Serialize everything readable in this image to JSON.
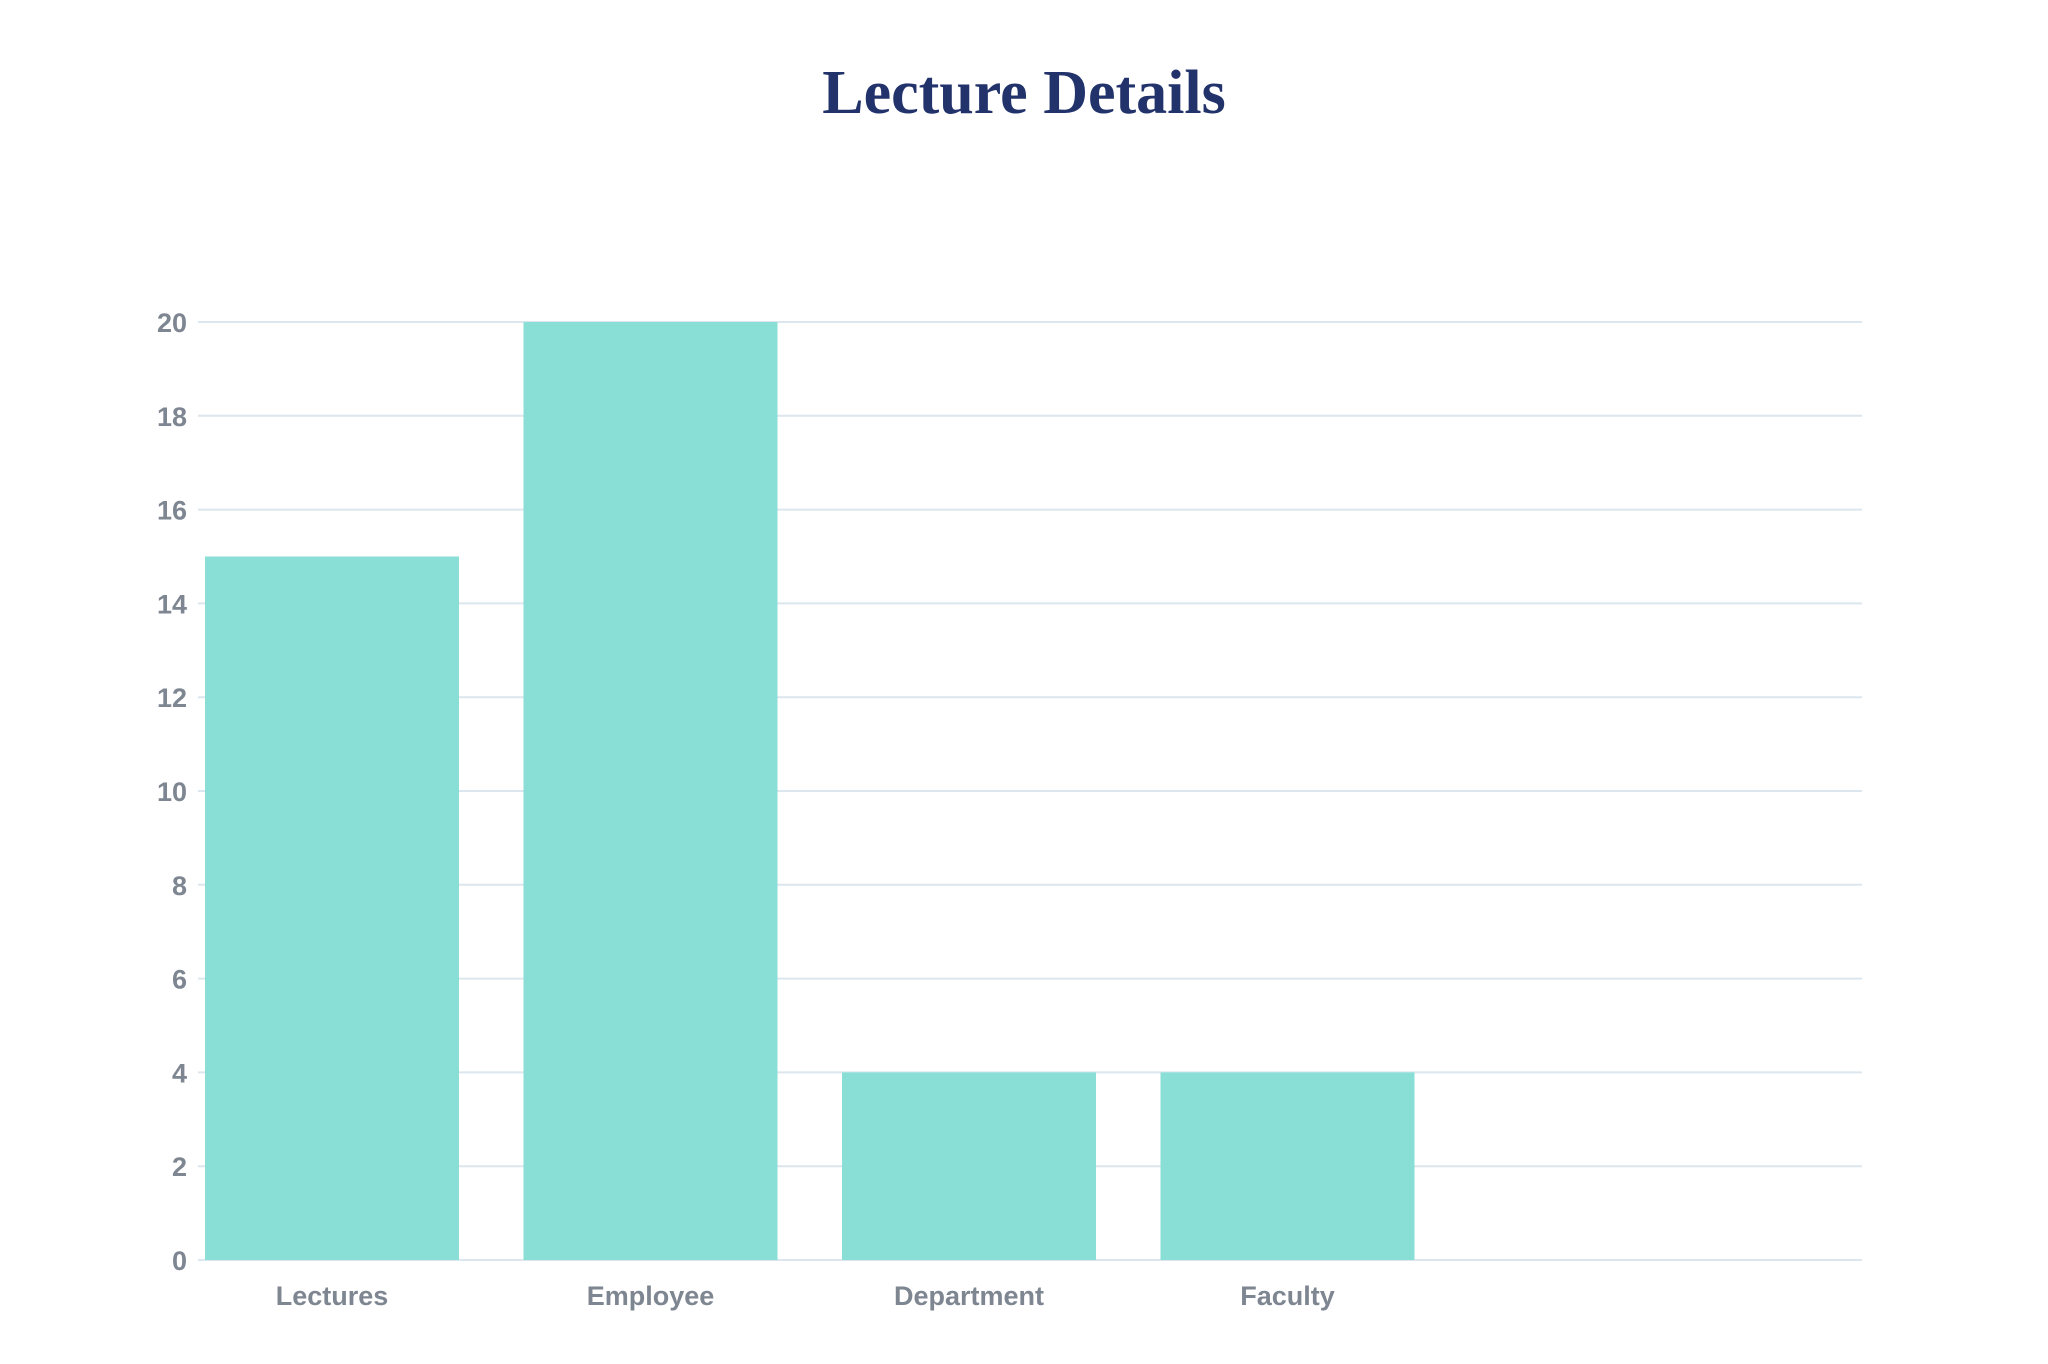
{
  "chart_data": {
    "type": "bar",
    "title": "Lecture Details",
    "categories": [
      "Lectures",
      "Employee",
      "Department",
      "Faculty"
    ],
    "values": [
      15,
      20,
      4,
      4
    ],
    "ylim": [
      0,
      20
    ],
    "yticks": [
      0,
      2,
      4,
      6,
      8,
      10,
      12,
      14,
      16,
      18,
      20
    ],
    "xlabel": "",
    "ylabel": "",
    "grid": true,
    "legend": "none",
    "colors": {
      "bar": "#89ded5",
      "grid": "#dbe6ee",
      "title": "#22336b",
      "tick_text": "#7e8691"
    }
  }
}
